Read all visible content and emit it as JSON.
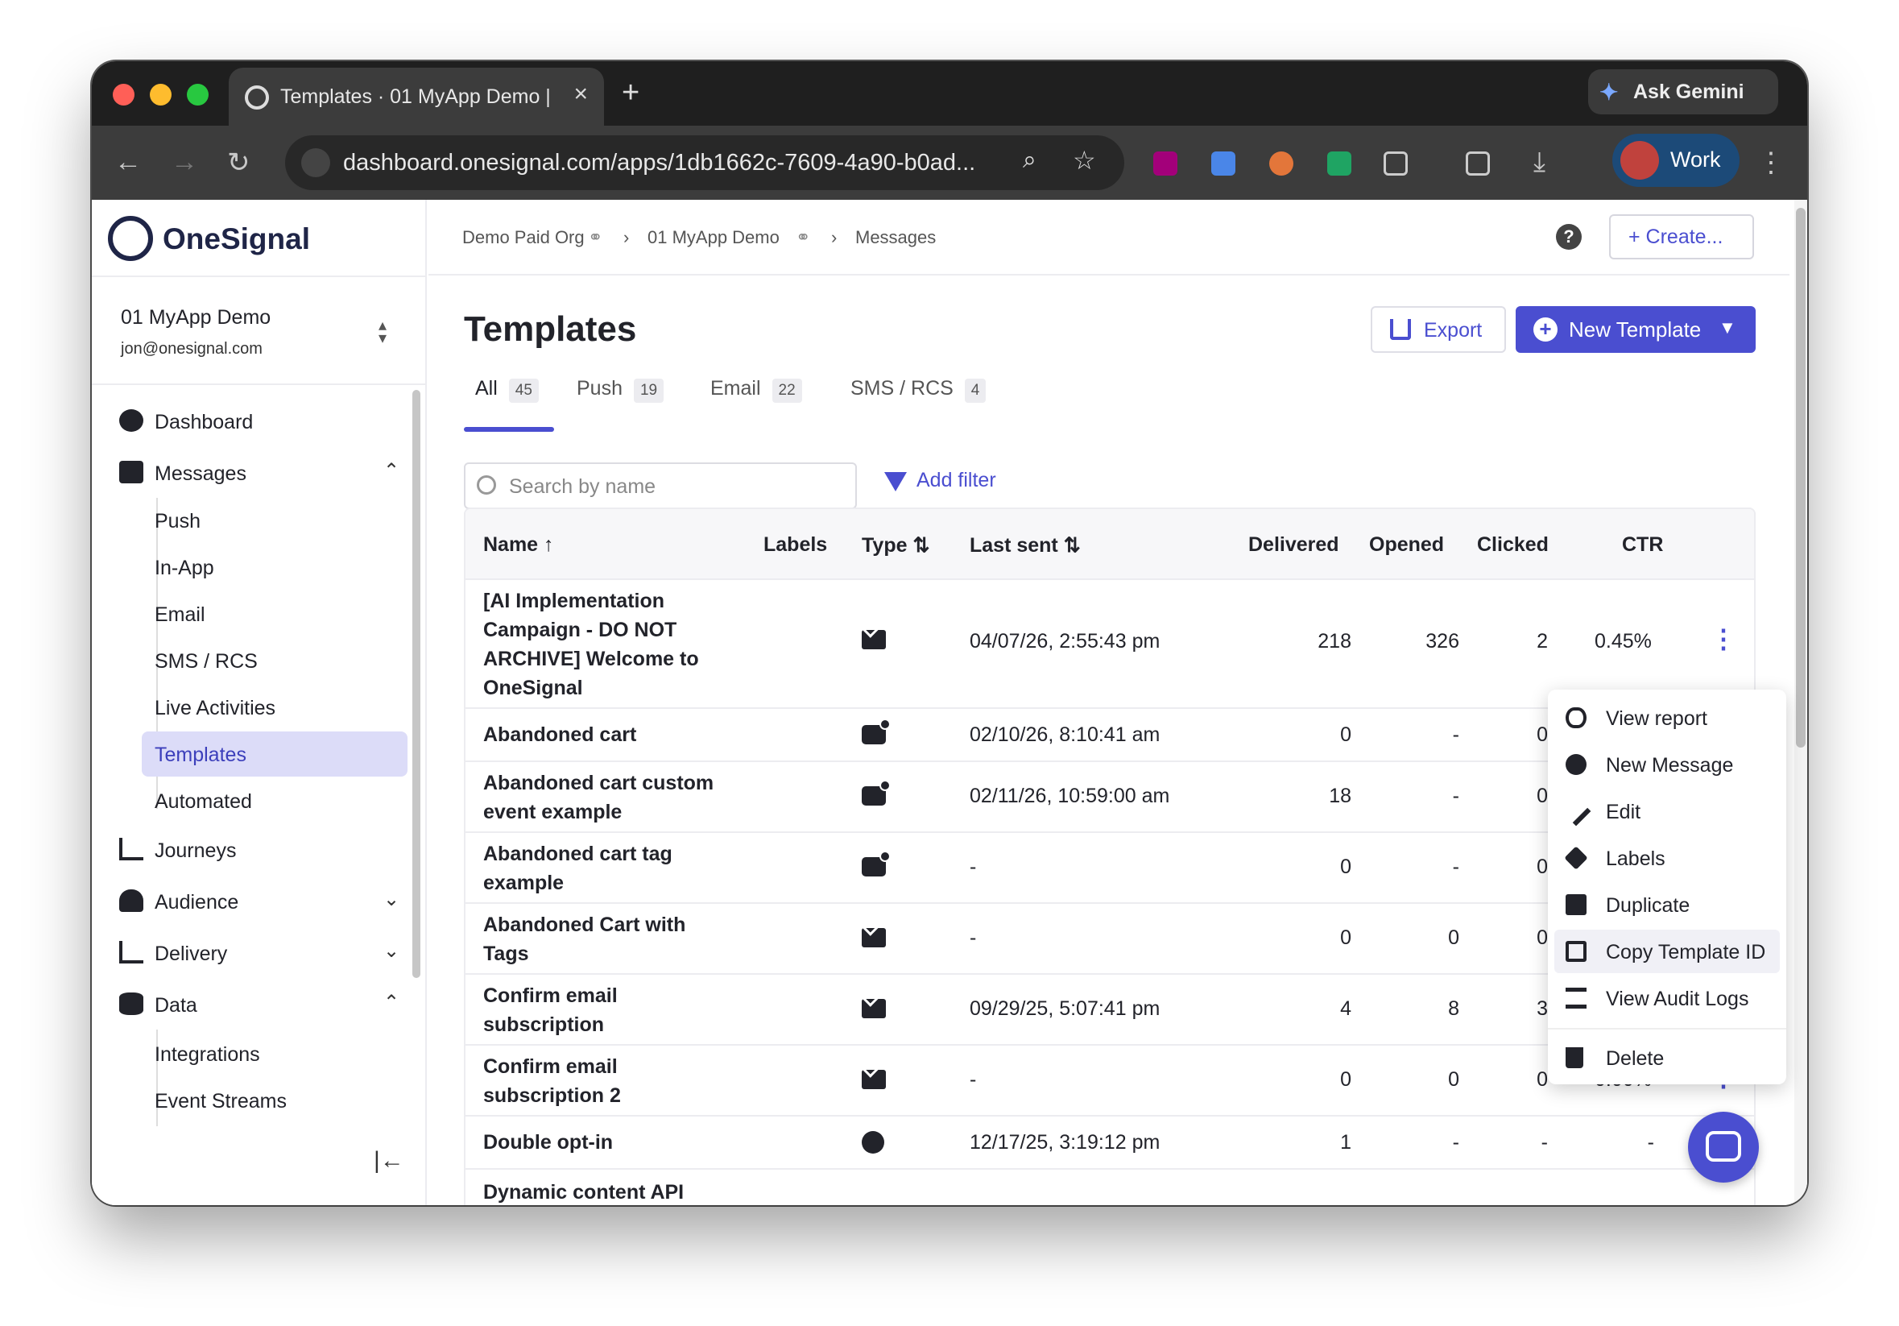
{
  "browser": {
    "tab_title": "Templates · 01 MyApp Demo |",
    "ask_gemini": "Ask Gemini",
    "url": "dashboard.onesignal.com/apps/1db1662c-7609-4a90-b0ad...",
    "profile_label": "Work"
  },
  "sidebar": {
    "brand": "OneSignal",
    "app_name": "01 MyApp Demo",
    "app_email": "jon@onesignal.com",
    "nav": {
      "dashboard": "Dashboard",
      "messages": "Messages",
      "journeys": "Journeys",
      "audience": "Audience",
      "delivery": "Delivery",
      "data": "Data"
    },
    "messages_sub": [
      "Push",
      "In-App",
      "Email",
      "SMS / RCS",
      "Live Activities",
      "Templates",
      "Automated"
    ],
    "data_sub": [
      "Integrations",
      "Event Streams"
    ]
  },
  "header": {
    "breadcrumb": [
      "Demo Paid Org",
      "01 MyApp Demo",
      "Messages"
    ],
    "help": "?",
    "create_label": "+ Create..."
  },
  "page": {
    "title": "Templates",
    "export_label": "Export",
    "new_template_label": "New Template",
    "tabs": [
      {
        "label": "All",
        "count": "45"
      },
      {
        "label": "Push",
        "count": "19"
      },
      {
        "label": "Email",
        "count": "22"
      },
      {
        "label": "SMS / RCS",
        "count": "4"
      }
    ],
    "search_placeholder": "Search by name",
    "add_filter": "Add filter"
  },
  "table": {
    "headers": {
      "name": "Name ↑",
      "labels": "Labels",
      "type": "Type ⇅",
      "last_sent": "Last sent ⇅",
      "delivered": "Delivered",
      "opened": "Opened",
      "clicked": "Clicked",
      "ctr": "CTR"
    },
    "rows": [
      {
        "name": "[AI Implementation Campaign - DO NOT ARCHIVE] Welcome to OneSignal",
        "type": "email",
        "last_sent": "04/07/26, 2:55:43 pm",
        "delivered": "218",
        "opened": "326",
        "clicked": "2",
        "ctr": "0.45%"
      },
      {
        "name": "Abandoned cart",
        "type": "push",
        "last_sent": "02/10/26, 8:10:41 am",
        "delivered": "0",
        "opened": "-",
        "clicked": "0",
        "ctr": ""
      },
      {
        "name": "Abandoned cart custom event example",
        "type": "push",
        "last_sent": "02/11/26, 10:59:00 am",
        "delivered": "18",
        "opened": "-",
        "clicked": "0",
        "ctr": ""
      },
      {
        "name": "Abandoned cart tag example",
        "type": "push",
        "last_sent": "-",
        "delivered": "0",
        "opened": "-",
        "clicked": "0",
        "ctr": ""
      },
      {
        "name": "Abandoned Cart with Tags",
        "type": "email",
        "last_sent": "-",
        "delivered": "0",
        "opened": "0",
        "clicked": "0",
        "ctr": ""
      },
      {
        "name": "Confirm email subscription",
        "type": "email",
        "last_sent": "09/29/25, 5:07:41 pm",
        "delivered": "4",
        "opened": "8",
        "clicked": "3",
        "ctr": ""
      },
      {
        "name": "Confirm email subscription 2",
        "type": "email",
        "last_sent": "-",
        "delivered": "0",
        "opened": "0",
        "clicked": "0",
        "ctr": "0.00%"
      },
      {
        "name": "Double opt-in",
        "type": "sms",
        "last_sent": "12/17/25, 3:19:12 pm",
        "delivered": "1",
        "opened": "-",
        "clicked": "-",
        "ctr": "-"
      },
      {
        "name": "Dynamic content API",
        "type": "push",
        "last_sent": "",
        "delivered": "",
        "opened": "",
        "clicked": "",
        "ctr": ""
      }
    ]
  },
  "context_menu": {
    "items": [
      "View report",
      "New Message",
      "Edit",
      "Labels",
      "Duplicate",
      "Copy Template ID",
      "View Audit Logs",
      "Delete"
    ],
    "highlighted": "Copy Template ID"
  },
  "colors": {
    "accent": "#4a4ed0",
    "active_nav_bg": "#dcdcf8",
    "brand_dark": "#1f2547"
  }
}
